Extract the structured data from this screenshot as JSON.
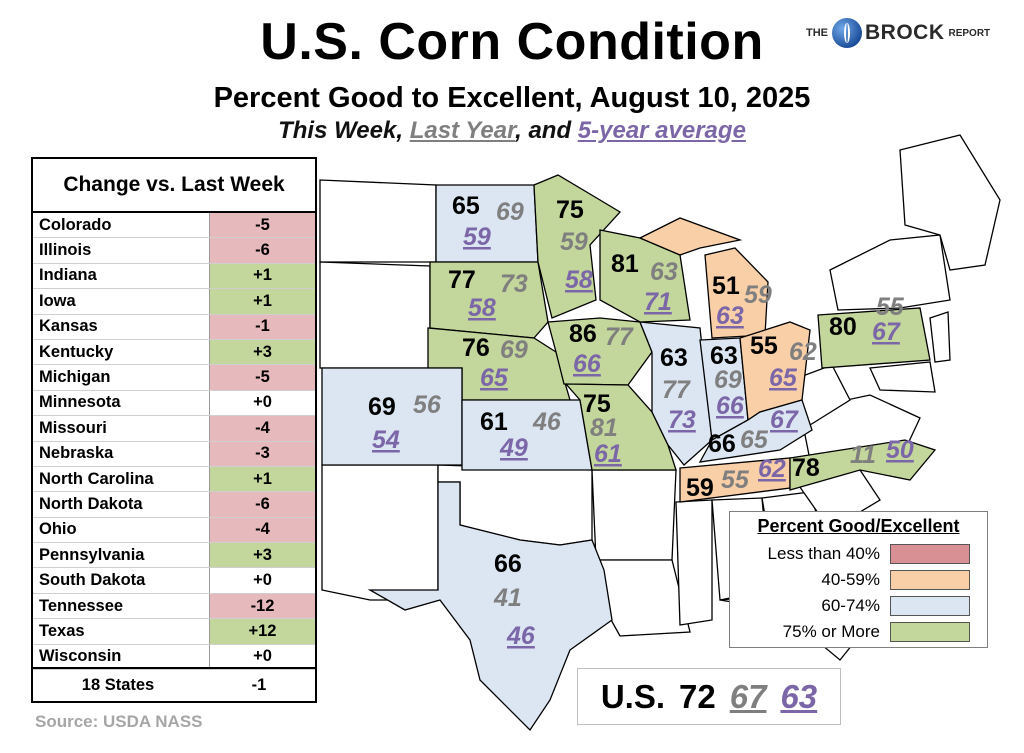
{
  "header": {
    "title": "U.S. Corn Condition",
    "subtitle": "Percent Good to Excellent, August 10, 2025",
    "legend_this": "This Week",
    "legend_sep1": ", ",
    "legend_last": "Last Year",
    "legend_sep2": ", and ",
    "legend_avg": "5-year average"
  },
  "logo": {
    "the": "THE",
    "brand": "BROCK",
    "report": "REPORT"
  },
  "change_table": {
    "title": "Change vs. Last Week",
    "rows": [
      {
        "state": "Colorado",
        "change": "-5"
      },
      {
        "state": "Illinois",
        "change": "-6"
      },
      {
        "state": "Indiana",
        "change": "+1"
      },
      {
        "state": "Iowa",
        "change": "+1"
      },
      {
        "state": "Kansas",
        "change": "-1"
      },
      {
        "state": "Kentucky",
        "change": "+3"
      },
      {
        "state": "Michigan",
        "change": "-5"
      },
      {
        "state": "Minnesota",
        "change": "+0"
      },
      {
        "state": "Missouri",
        "change": "-4"
      },
      {
        "state": "Nebraska",
        "change": "-3"
      },
      {
        "state": "North Carolina",
        "change": "+1"
      },
      {
        "state": "North Dakota",
        "change": "-6"
      },
      {
        "state": "Ohio",
        "change": "-4"
      },
      {
        "state": "Pennsylvania",
        "change": "+3"
      },
      {
        "state": "South Dakota",
        "change": "+0"
      },
      {
        "state": "Tennessee",
        "change": "-12"
      },
      {
        "state": "Texas",
        "change": "+12"
      },
      {
        "state": "Wisconsin",
        "change": "+0"
      }
    ],
    "total_label": "18 States",
    "total_change": "-1"
  },
  "source": "Source: USDA NASS",
  "map_states": {
    "north_dakota": {
      "this_week": "65",
      "last_year": "69",
      "five_year_avg": "59"
    },
    "south_dakota": {
      "this_week": "77",
      "last_year": "73",
      "five_year_avg": "58"
    },
    "nebraska": {
      "this_week": "76",
      "last_year": "69",
      "five_year_avg": "65"
    },
    "colorado": {
      "this_week": "69",
      "last_year": "56",
      "five_year_avg": "54"
    },
    "kansas": {
      "this_week": "61",
      "last_year": "46",
      "five_year_avg": "49"
    },
    "texas": {
      "this_week": "66",
      "last_year": "41",
      "five_year_avg": "46"
    },
    "minnesota": {
      "this_week": "75",
      "last_year": "59",
      "five_year_avg": "58"
    },
    "iowa": {
      "this_week": "86",
      "last_year": "77",
      "five_year_avg": "66"
    },
    "missouri": {
      "this_week": "75",
      "last_year": "81",
      "five_year_avg": "61"
    },
    "wisconsin": {
      "this_week": "81",
      "last_year": "63",
      "five_year_avg": "71"
    },
    "illinois": {
      "this_week": "63",
      "last_year": "77",
      "five_year_avg": "73"
    },
    "indiana": {
      "this_week": "63",
      "last_year": "69",
      "five_year_avg": "66"
    },
    "michigan": {
      "this_week": "51",
      "last_year": "59",
      "five_year_avg": "63"
    },
    "ohio": {
      "this_week": "55",
      "last_year": "62",
      "five_year_avg": "65"
    },
    "kentucky": {
      "this_week": "66",
      "last_year": "65",
      "five_year_avg": "67"
    },
    "tennessee": {
      "this_week": "59",
      "last_year": "55",
      "five_year_avg": "62"
    },
    "north_carolina": {
      "this_week": "78",
      "last_year": "11",
      "five_year_avg": "50"
    },
    "pennsylvania": {
      "this_week": "80",
      "last_year": "55",
      "five_year_avg": "67"
    }
  },
  "color_key": {
    "title": "Percent Good/Excellent",
    "items": [
      {
        "label": "Less than 40%",
        "color": "#d99095"
      },
      {
        "label": "40-59%",
        "color": "#f9cfa8"
      },
      {
        "label": "60-74%",
        "color": "#dce6f2"
      },
      {
        "label": "75% or More",
        "color": "#c3d69b"
      }
    ]
  },
  "us_total": {
    "label": "U.S.",
    "this_week": "72",
    "last_year": "67",
    "five_year_avg": "63"
  },
  "colors": {
    "good": "#c3d69b",
    "fair": "#dce6f2",
    "poor": "#f9cfa8",
    "bad": "#d99095",
    "neg_cell": "#e6b9bd",
    "pos_cell": "#c3d69b",
    "avg_text": "#7b66a8",
    "last_text": "#7f7f7f"
  }
}
